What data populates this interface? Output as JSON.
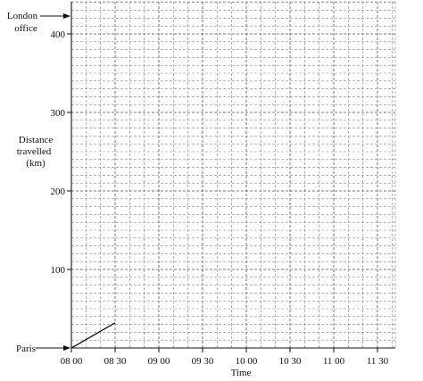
{
  "chart_data": {
    "type": "line",
    "title": "",
    "xlabel": "Time",
    "ylabel": [
      "Distance",
      "travelled",
      "(km)"
    ],
    "x_ticks": [
      "08 00",
      "08 30",
      "09 00",
      "09 30",
      "10 00",
      "10 30",
      "11 00",
      "11 30"
    ],
    "y_ticks": [
      100,
      200,
      300,
      400
    ],
    "xlim": [
      "08:00",
      "11:40"
    ],
    "ylim": [
      0,
      440
    ],
    "grid": "dashed, 10 km by 10 min",
    "series": [
      {
        "x": [
          "08:00",
          "08:30"
        ],
        "y": [
          0,
          32
        ]
      }
    ],
    "annotations": {
      "top_label": [
        "London",
        "office"
      ],
      "bottom_label": "Paris"
    }
  }
}
